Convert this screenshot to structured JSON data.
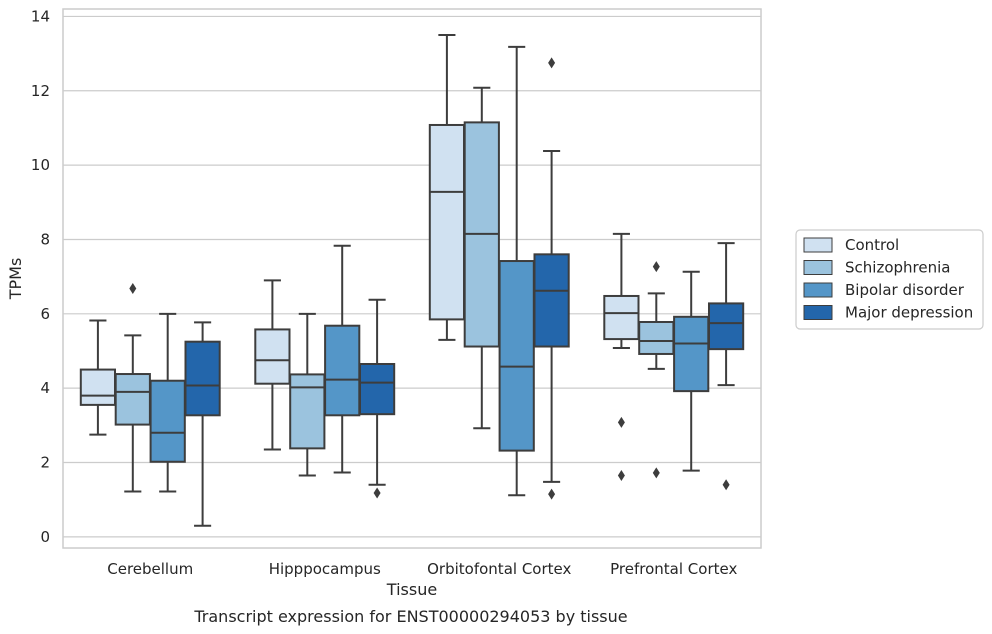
{
  "chart_data": {
    "type": "boxplot",
    "title": "",
    "caption": "Transcript expression for ENST00000294053 by tissue",
    "xlabel": "Tissue",
    "ylabel": "TPMs",
    "ylim": [
      -0.3,
      14.2
    ],
    "yticks": [
      0,
      2,
      4,
      6,
      8,
      10,
      12,
      14
    ],
    "grid": "horizontal",
    "legend_position": "right",
    "categories": [
      "Cerebellum",
      "Hipppocampus",
      "Orbitofontal Cortex",
      "Prefrontal Cortex"
    ],
    "series": [
      {
        "name": "Control",
        "color": "#d0e1f1",
        "boxes": [
          {
            "whislo": 2.75,
            "q1": 3.55,
            "med": 3.8,
            "q3": 4.5,
            "whishi": 5.82,
            "fliers": []
          },
          {
            "whislo": 2.35,
            "q1": 4.12,
            "med": 4.75,
            "q3": 5.58,
            "whishi": 6.9,
            "fliers": []
          },
          {
            "whislo": 5.3,
            "q1": 5.85,
            "med": 9.28,
            "q3": 11.08,
            "whishi": 13.5,
            "fliers": []
          },
          {
            "whislo": 5.08,
            "q1": 5.32,
            "med": 6.02,
            "q3": 6.48,
            "whishi": 8.15,
            "fliers": [
              3.08,
              1.65
            ]
          }
        ]
      },
      {
        "name": "Schizophrenia",
        "color": "#9bc3de",
        "boxes": [
          {
            "whislo": 1.22,
            "q1": 3.02,
            "med": 3.9,
            "q3": 4.38,
            "whishi": 5.42,
            "fliers": [
              6.68
            ]
          },
          {
            "whislo": 1.65,
            "q1": 2.38,
            "med": 4.02,
            "q3": 4.37,
            "whishi": 6.0,
            "fliers": []
          },
          {
            "whislo": 2.92,
            "q1": 5.12,
            "med": 8.15,
            "q3": 11.15,
            "whishi": 12.08,
            "fliers": []
          },
          {
            "whislo": 4.52,
            "q1": 4.92,
            "med": 5.27,
            "q3": 5.78,
            "whishi": 6.55,
            "fliers": [
              7.27,
              1.72
            ]
          }
        ]
      },
      {
        "name": "Bipolar disorder",
        "color": "#5496c8",
        "boxes": [
          {
            "whislo": 1.22,
            "q1": 2.02,
            "med": 2.8,
            "q3": 4.2,
            "whishi": 6.0,
            "fliers": []
          },
          {
            "whislo": 1.73,
            "q1": 3.27,
            "med": 4.23,
            "q3": 5.68,
            "whishi": 7.83,
            "fliers": []
          },
          {
            "whislo": 1.12,
            "q1": 2.32,
            "med": 4.58,
            "q3": 7.42,
            "whishi": 13.18,
            "fliers": []
          },
          {
            "whislo": 1.78,
            "q1": 3.92,
            "med": 5.2,
            "q3": 5.92,
            "whishi": 7.13,
            "fliers": []
          }
        ]
      },
      {
        "name": "Major depression",
        "color": "#2366ab",
        "boxes": [
          {
            "whislo": 0.3,
            "q1": 3.27,
            "med": 4.07,
            "q3": 5.25,
            "whishi": 5.77,
            "fliers": []
          },
          {
            "whislo": 1.4,
            "q1": 3.3,
            "med": 4.15,
            "q3": 4.65,
            "whishi": 6.38,
            "fliers": [
              1.18
            ]
          },
          {
            "whislo": 1.48,
            "q1": 5.12,
            "med": 6.62,
            "q3": 7.6,
            "whishi": 10.38,
            "fliers": [
              12.75,
              1.15
            ]
          },
          {
            "whislo": 4.08,
            "q1": 5.05,
            "med": 5.75,
            "q3": 6.28,
            "whishi": 7.9,
            "fliers": [
              1.4
            ]
          }
        ]
      }
    ]
  }
}
